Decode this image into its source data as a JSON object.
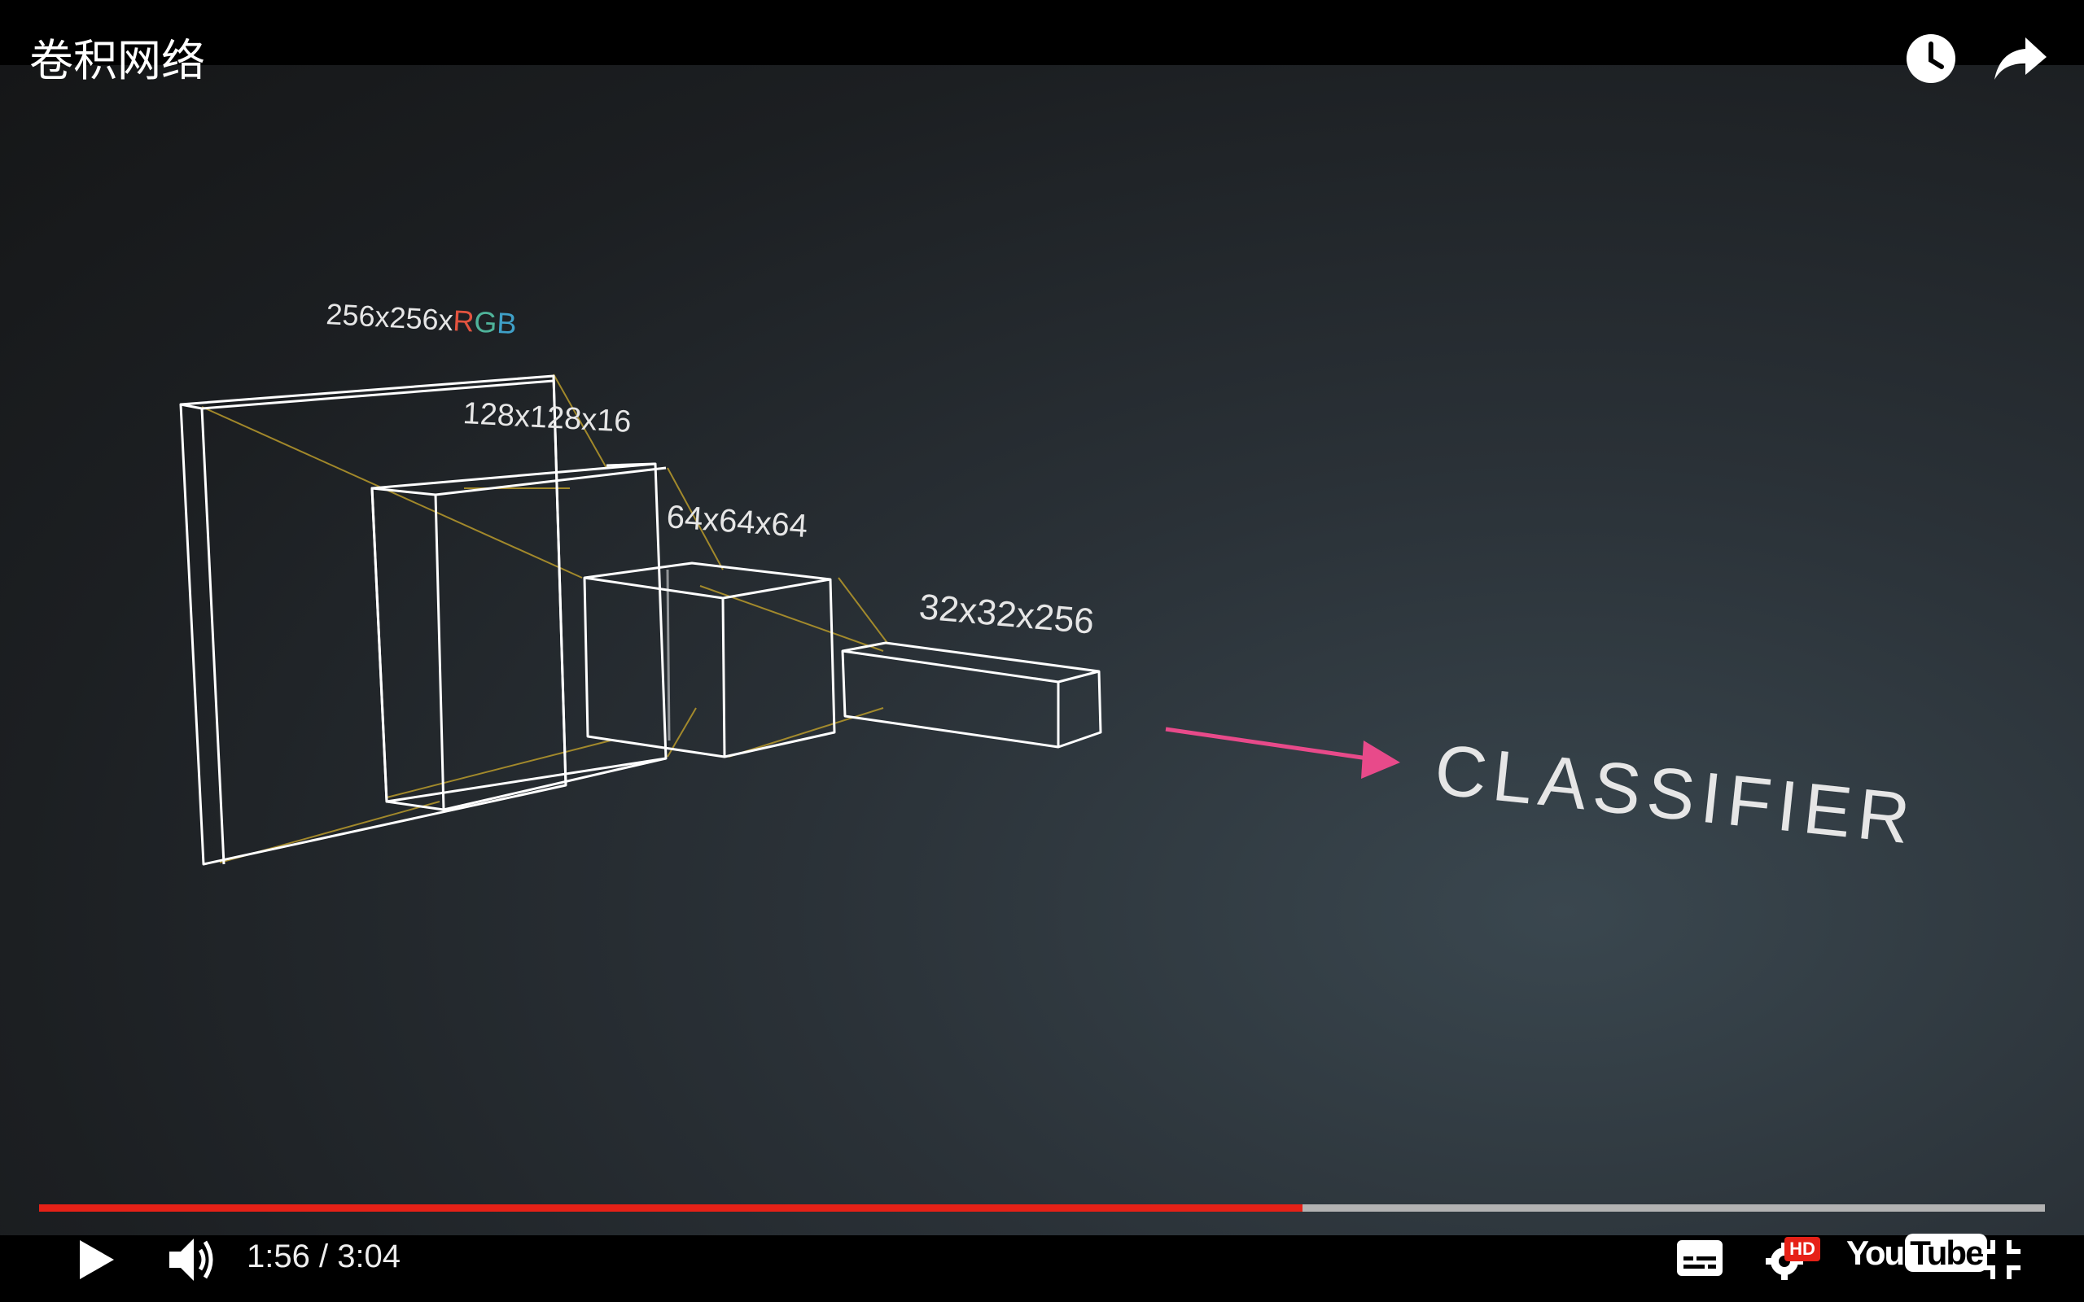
{
  "video": {
    "title": "卷积网络",
    "time": "1:56 / 3:04",
    "progress_fraction": 0.63
  },
  "scene": {
    "layer_labels": [
      "256x256x",
      "128x128x16",
      "64x64x64",
      "32x32x256"
    ],
    "rgb": {
      "r": "R",
      "g": "G",
      "b": "B"
    },
    "classifier_label": "CLASSIFIER"
  },
  "controls": {
    "play_icon": "play-icon",
    "volume_icon": "volume-icon",
    "subtitles_icon": "subtitles-icon",
    "settings_icon": "settings-icon",
    "hd_badge": "HD",
    "youtube_logo": {
      "you": "You",
      "tube": "Tube"
    },
    "fullscreen_exit_icon": "exit-fullscreen-icon",
    "watch_later_icon": "clock-icon",
    "share_icon": "share-arrow-icon"
  },
  "colors": {
    "progress": "#e62117",
    "arrow": "#e84a8a",
    "rgb_r": "#e2533f",
    "rgb_g": "#4fb39a",
    "rgb_b": "#3fa0c8",
    "connector": "#b89a2b"
  }
}
